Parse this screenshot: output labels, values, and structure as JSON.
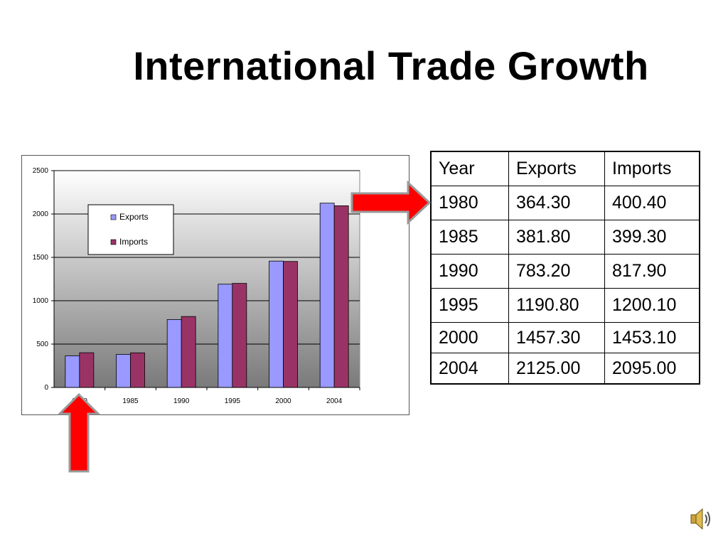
{
  "slide": {
    "title": "International Trade Growth",
    "icon": "speaker-icon"
  },
  "table": {
    "headers": [
      "Year",
      "Exports",
      "Imports"
    ],
    "rows": [
      [
        "1980",
        "364.30",
        "400.40"
      ],
      [
        "1985",
        "381.80",
        "399.30"
      ],
      [
        "1990",
        "783.20",
        "817.90"
      ],
      [
        "1995",
        "1190.80",
        "1200.10"
      ],
      [
        "2000",
        "1457.30",
        "1453.10"
      ],
      [
        "2004",
        "2125.00",
        "2095.00"
      ]
    ]
  },
  "chart_data": {
    "type": "bar",
    "title": "",
    "xlabel": "",
    "ylabel": "",
    "categories": [
      "1980",
      "1985",
      "1990",
      "1995",
      "2000",
      "2004"
    ],
    "series": [
      {
        "name": "Exports",
        "values": [
          364.3,
          381.8,
          783.2,
          1190.8,
          1457.3,
          2125.0
        ],
        "color": "#9999ff"
      },
      {
        "name": "Imports",
        "values": [
          400.4,
          399.3,
          817.9,
          1200.1,
          1453.1,
          2095.0
        ],
        "color": "#993366"
      }
    ],
    "ylim": [
      0,
      2500
    ],
    "yticks": [
      0,
      500,
      1000,
      1500,
      2000,
      2500
    ],
    "grid": true,
    "legend": "top-left inside plot",
    "background": "gradient white to gray"
  },
  "annotations": {
    "arrow_color": "#ff0000",
    "arrow_outline": "#9a9a9a"
  }
}
